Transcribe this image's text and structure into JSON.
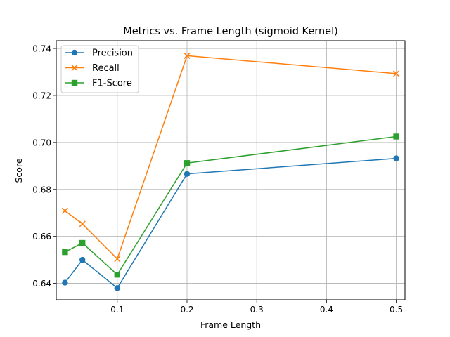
{
  "chart_data": {
    "type": "line",
    "title": "Metrics vs. Frame Length (sigmoid Kernel)",
    "xlabel": "Frame Length",
    "ylabel": "Score",
    "xlim": [
      0.0125,
      0.5125
    ],
    "ylim": [
      0.633,
      0.7433
    ],
    "xticks": [
      0.1,
      0.2,
      0.3,
      0.4,
      0.5
    ],
    "xtick_labels": [
      "0.1",
      "0.2",
      "0.3",
      "0.4",
      "0.5"
    ],
    "yticks": [
      0.64,
      0.66,
      0.68,
      0.7,
      0.72,
      0.74
    ],
    "ytick_labels": [
      "0.64",
      "0.66",
      "0.68",
      "0.70",
      "0.72",
      "0.74"
    ],
    "grid": true,
    "legend_position": "top-left",
    "x": [
      0.025,
      0.05,
      0.1,
      0.2,
      0.5
    ],
    "series": [
      {
        "name": "Precision",
        "color": "#1f77b4",
        "marker": "circle",
        "values": [
          0.6403,
          0.65,
          0.638,
          0.6866,
          0.6932
        ]
      },
      {
        "name": "Recall",
        "color": "#ff7f0e",
        "marker": "x",
        "values": [
          0.6709,
          0.6653,
          0.6504,
          0.7369,
          0.7293
        ]
      },
      {
        "name": "F1-Score",
        "color": "#2ca02c",
        "marker": "square",
        "values": [
          0.6533,
          0.6572,
          0.6437,
          0.6912,
          0.7025
        ]
      }
    ]
  }
}
